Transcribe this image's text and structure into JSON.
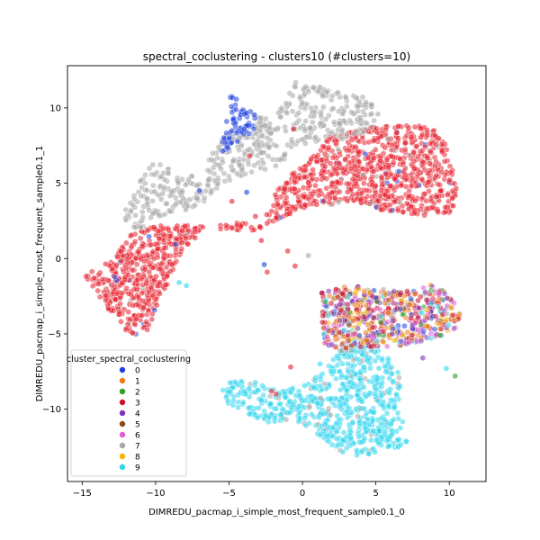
{
  "chart_data": {
    "type": "scatter",
    "title": "spectral_coclustering - clusters10 (#clusters=10)",
    "xlabel": "DIMREDU_pacmap_i_simple_most_frequent_sample0.1_0",
    "ylabel": "DIMREDU_pacmap_i_simple_most_frequent_sample0.1_1",
    "xlim": [
      -16.0,
      12.5
    ],
    "ylim": [
      -14.8,
      12.8
    ],
    "xticks": [
      -15,
      -10,
      -5,
      0,
      5,
      10
    ],
    "yticks": [
      -10,
      -5,
      0,
      5,
      10
    ],
    "xtick_labels": [
      "−15",
      "−10",
      "−5",
      "0",
      "5",
      "10"
    ],
    "ytick_labels": [
      "−10",
      "−5",
      "0",
      "5",
      "10"
    ],
    "grid": false,
    "legend": {
      "title": "cluster_spectral_coclustering",
      "placement": "lower-left",
      "entries": [
        {
          "label": "0",
          "color": "#1f3fe0"
        },
        {
          "label": "1",
          "color": "#f07a12"
        },
        {
          "label": "2",
          "color": "#2ca02c"
        },
        {
          "label": "3",
          "color": "#c8102e"
        },
        {
          "label": "4",
          "color": "#7b35b8"
        },
        {
          "label": "5",
          "color": "#8c4a1c"
        },
        {
          "label": "6",
          "color": "#e05ad6"
        },
        {
          "label": "7",
          "color": "#a6a6a6"
        },
        {
          "label": "8",
          "color": "#f2b705"
        },
        {
          "label": "9",
          "color": "#2fd5ef"
        }
      ]
    },
    "point_color_red": "#e8202e",
    "regions": [
      {
        "series": "3",
        "shape": "polygon",
        "points": [
          [
            -14.8,
            -1.2
          ],
          [
            -13.5,
            -0.2
          ],
          [
            -12.5,
            0.8
          ],
          [
            -11.5,
            1.7
          ],
          [
            -10.5,
            2.0
          ],
          [
            -9.0,
            2.3
          ],
          [
            -7.5,
            2.2
          ],
          [
            -6.0,
            2.0
          ],
          [
            -4.5,
            1.8
          ],
          [
            -3.0,
            1.8
          ],
          [
            -2.5,
            2.4
          ],
          [
            -2.3,
            4.0
          ],
          [
            -1.2,
            5.2
          ],
          [
            0.5,
            6.6
          ],
          [
            2.0,
            8.2
          ],
          [
            4.0,
            8.7
          ],
          [
            6.0,
            8.8
          ],
          [
            8.0,
            8.9
          ],
          [
            9.5,
            8.3
          ],
          [
            10.3,
            6.5
          ],
          [
            10.5,
            4.5
          ],
          [
            10.2,
            3.0
          ],
          [
            8.5,
            2.8
          ],
          [
            6.5,
            3.1
          ],
          [
            4.5,
            3.3
          ],
          [
            3.5,
            3.8
          ],
          [
            2.0,
            3.6
          ],
          [
            0.5,
            3.5
          ],
          [
            -0.5,
            3.0
          ],
          [
            -2.5,
            2.3
          ],
          [
            -4.0,
            2.4
          ],
          [
            -5.5,
            2.3
          ],
          [
            -7.0,
            1.6
          ],
          [
            -8.2,
            0.6
          ],
          [
            -9.0,
            -1.5
          ],
          [
            -10.0,
            -3.5
          ],
          [
            -10.8,
            -5.3
          ],
          [
            -12.0,
            -4.8
          ],
          [
            -13.5,
            -3.0
          ]
        ],
        "n": 1300
      },
      {
        "series": "7",
        "shape": "polygon",
        "points": [
          [
            -12.3,
            1.8
          ],
          [
            -12.0,
            3.4
          ],
          [
            -11.4,
            4.8
          ],
          [
            -10.0,
            6.5
          ],
          [
            -8.8,
            6.0
          ],
          [
            -8.0,
            5.2
          ],
          [
            -7.0,
            5.8
          ],
          [
            -6.2,
            6.9
          ],
          [
            -5.6,
            7.8
          ],
          [
            -5.0,
            8.6
          ],
          [
            -4.0,
            8.7
          ],
          [
            -3.2,
            9.8
          ],
          [
            -2.2,
            9.2
          ],
          [
            -1.2,
            10.3
          ],
          [
            -0.5,
            11.8
          ],
          [
            0.8,
            11.5
          ],
          [
            2.5,
            11.0
          ],
          [
            3.8,
            10.9
          ],
          [
            5.0,
            10.2
          ],
          [
            5.5,
            9.2
          ],
          [
            4.0,
            8.2
          ],
          [
            2.5,
            7.9
          ],
          [
            0.5,
            7.7
          ],
          [
            -0.8,
            7.2
          ],
          [
            -1.5,
            6.2
          ],
          [
            -2.6,
            5.8
          ],
          [
            -3.8,
            5.6
          ],
          [
            -5.0,
            5.0
          ],
          [
            -6.0,
            4.2
          ],
          [
            -6.8,
            3.7
          ],
          [
            -8.0,
            3.2
          ],
          [
            -9.5,
            2.8
          ],
          [
            -11.0,
            2.0
          ]
        ],
        "n": 500
      },
      {
        "series": "0",
        "shape": "polygon",
        "points": [
          [
            -5.8,
            6.2
          ],
          [
            -5.3,
            8.5
          ],
          [
            -4.9,
            10.9
          ],
          [
            -4.2,
            10.4
          ],
          [
            -3.4,
            10.0
          ],
          [
            -3.0,
            9.0
          ],
          [
            -3.6,
            8.2
          ],
          [
            -4.4,
            7.8
          ],
          [
            -5.2,
            7.0
          ]
        ],
        "n": 70
      },
      {
        "series": "9",
        "shape": "polygon",
        "points": [
          [
            -5.5,
            -8.5
          ],
          [
            -4.5,
            -8.0
          ],
          [
            -3.0,
            -8.2
          ],
          [
            -1.5,
            -8.6
          ],
          [
            0.0,
            -8.5
          ],
          [
            1.5,
            -7.5
          ],
          [
            2.8,
            -5.6
          ],
          [
            4.2,
            -5.2
          ],
          [
            5.5,
            -6.4
          ],
          [
            7.0,
            -7.2
          ],
          [
            6.5,
            -9.0
          ],
          [
            6.9,
            -11.2
          ],
          [
            7.2,
            -12.4
          ],
          [
            6.0,
            -12.7
          ],
          [
            3.8,
            -13.2
          ],
          [
            2.0,
            -12.6
          ],
          [
            0.8,
            -11.4
          ],
          [
            -0.5,
            -10.7
          ],
          [
            -2.0,
            -11.0
          ],
          [
            -3.2,
            -10.7
          ],
          [
            -4.2,
            -10.1
          ],
          [
            -5.2,
            -9.6
          ]
        ],
        "n": 650
      },
      {
        "series": "mixed",
        "shape": "polygon",
        "points": [
          [
            1.3,
            -2.2
          ],
          [
            3.2,
            -1.8
          ],
          [
            5.5,
            -2.0
          ],
          [
            7.5,
            -2.2
          ],
          [
            9.0,
            -1.6
          ],
          [
            10.3,
            -2.8
          ],
          [
            10.8,
            -3.6
          ],
          [
            10.5,
            -4.6
          ],
          [
            9.5,
            -5.2
          ],
          [
            8.5,
            -5.4
          ],
          [
            6.5,
            -5.8
          ],
          [
            4.5,
            -5.9
          ],
          [
            2.8,
            -6.2
          ],
          [
            1.4,
            -5.6
          ],
          [
            1.3,
            -3.8
          ]
        ],
        "n": 600
      }
    ]
  }
}
